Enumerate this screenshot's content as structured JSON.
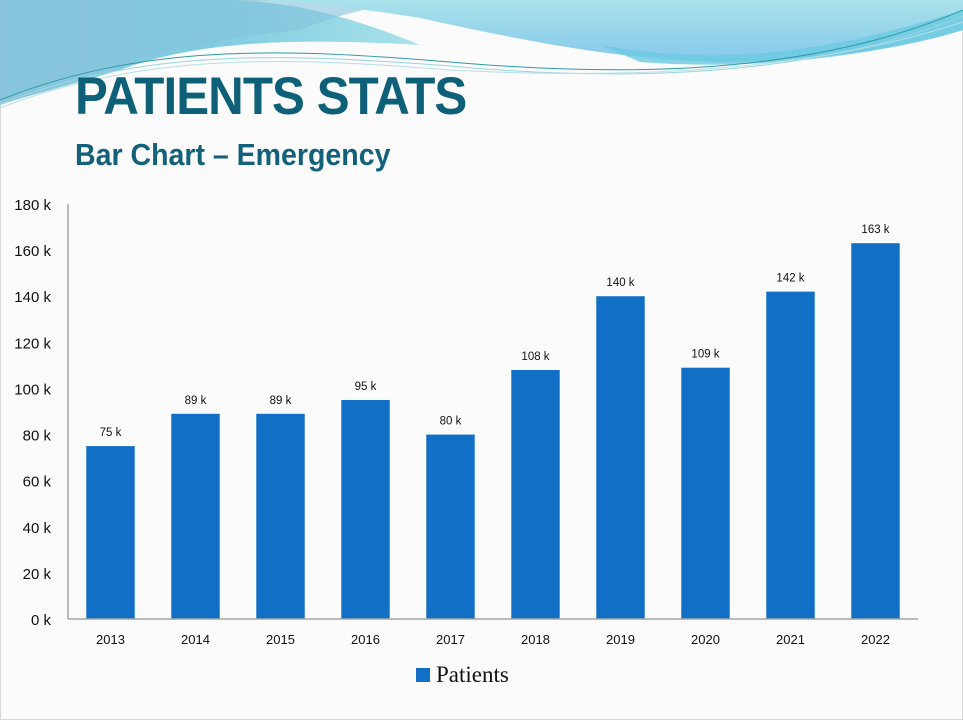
{
  "header": {
    "title": "PATIENTS STATS",
    "subtitle": "Bar Chart – Emergency"
  },
  "colors": {
    "bar": "#1170c6",
    "title": "#0e6079",
    "axis": "#a6a6a6",
    "wave_light": "#a9e2ea",
    "wave_mid": "#7fcde0",
    "wave_dark": "#46b3d6"
  },
  "chart_data": {
    "type": "bar",
    "title": "Bar Chart – Emergency",
    "xlabel": "",
    "ylabel": "",
    "categories": [
      "2013",
      "2014",
      "2015",
      "2016",
      "2017",
      "2018",
      "2019",
      "2020",
      "2021",
      "2022"
    ],
    "series": [
      {
        "name": "Patients",
        "values": [
          75,
          89,
          89,
          95,
          80,
          108,
          140,
          109,
          142,
          163
        ]
      }
    ],
    "value_labels": [
      "75 k",
      "89 k",
      "89 k",
      "95 k",
      "80 k",
      "108 k",
      "140 k",
      "109 k",
      "142 k",
      "163 k"
    ],
    "unit_suffix": " k",
    "ylim": [
      0,
      180
    ],
    "yticks": [
      0,
      20,
      40,
      60,
      80,
      100,
      120,
      140,
      160,
      180
    ],
    "ytick_labels": [
      "0 k",
      "20 k",
      "40 k",
      "60 k",
      "80 k",
      "100 k",
      "120 k",
      "140 k",
      "160 k",
      "180 k"
    ],
    "grid": false,
    "legend": {
      "position": "bottom",
      "entries": [
        "Patients"
      ]
    }
  }
}
